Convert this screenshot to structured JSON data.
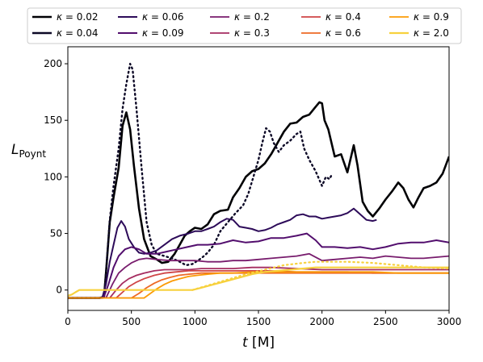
{
  "chart_data": {
    "type": "line",
    "title": "",
    "xlabel": "t [M]",
    "ylabel": "L_Poynt",
    "xlim": [
      0,
      3000
    ],
    "ylim": [
      -18,
      215
    ],
    "xticks": [
      0,
      500,
      1000,
      1500,
      2000,
      2500,
      3000
    ],
    "yticks": [
      0,
      50,
      100,
      150,
      200
    ],
    "grid": false,
    "legend_position": "top",
    "legend_columns": 5,
    "series": [
      {
        "name": "κ = 0.02",
        "color": "#000004",
        "width": 2.6,
        "dash": "solid",
        "x": [
          0,
          100,
          250,
          285,
          300,
          330,
          360,
          400,
          430,
          460,
          490,
          520,
          560,
          600,
          650,
          700,
          740,
          790,
          840,
          880,
          920,
          960,
          1000,
          1050,
          1100,
          1150,
          1200,
          1260,
          1300,
          1350,
          1400,
          1450,
          1500,
          1550,
          1600,
          1650,
          1700,
          1750,
          1800,
          1850,
          1900,
          1950,
          1980,
          2000,
          2020,
          2050,
          2100,
          2150,
          2200,
          2250,
          2280,
          2320,
          2360,
          2400,
          2450,
          2500,
          2550,
          2600,
          2640,
          2680,
          2720,
          2760,
          2800,
          2850,
          2900,
          2950,
          3000
        ],
        "y": [
          -7,
          -7,
          -7,
          -6,
          15,
          60,
          82,
          108,
          145,
          157,
          142,
          110,
          72,
          45,
          30,
          27,
          24,
          25,
          32,
          40,
          48,
          52,
          55,
          54,
          58,
          67,
          70,
          71,
          82,
          90,
          100,
          105,
          107,
          112,
          120,
          130,
          140,
          147,
          148,
          153,
          155,
          162,
          166,
          165,
          150,
          142,
          118,
          120,
          104,
          128,
          110,
          78,
          70,
          65,
          72,
          80,
          87,
          95,
          90,
          80,
          73,
          82,
          90,
          92,
          95,
          103,
          118
        ]
      },
      {
        "name": "κ = 0.04",
        "color": "#0c0826",
        "width": 2.4,
        "dash": "dotted",
        "x": [
          0,
          250,
          285,
          300,
          330,
          360,
          400,
          430,
          460,
          490,
          510,
          540,
          580,
          620,
          660,
          700,
          760,
          820,
          880,
          930,
          980,
          1050,
          1100,
          1150,
          1200,
          1260,
          1320,
          1380,
          1420,
          1460,
          1500,
          1530,
          1560,
          1590,
          1620,
          1660,
          1700,
          1750,
          1800,
          1830,
          1860,
          1900,
          1950,
          2000,
          2030,
          2060,
          2080
        ],
        "y": [
          -7,
          -7,
          -6,
          15,
          62,
          92,
          125,
          160,
          182,
          200,
          195,
          160,
          108,
          60,
          40,
          32,
          30,
          28,
          25,
          22,
          23,
          28,
          33,
          40,
          52,
          60,
          68,
          75,
          85,
          100,
          115,
          130,
          143,
          140,
          130,
          122,
          128,
          132,
          138,
          140,
          125,
          115,
          105,
          92,
          100,
          98,
          103
        ]
      },
      {
        "name": "κ = 0.06",
        "color": "#2d0b59",
        "width": 2.0,
        "dash": "solid",
        "x": [
          0,
          270,
          300,
          330,
          360,
          390,
          420,
          450,
          480,
          520,
          560,
          600,
          650,
          700,
          760,
          820,
          880,
          950,
          1000,
          1050,
          1100,
          1150,
          1200,
          1250,
          1300,
          1350,
          1400,
          1450,
          1500,
          1550,
          1600,
          1650,
          1700,
          1750,
          1800,
          1850,
          1900,
          1950,
          2000,
          2050,
          2100,
          2150,
          2200,
          2250,
          2300,
          2350,
          2400,
          2430
        ],
        "y": [
          -7,
          -7,
          5,
          25,
          40,
          55,
          61,
          56,
          45,
          38,
          33,
          32,
          33,
          35,
          40,
          45,
          48,
          50,
          52,
          52,
          54,
          56,
          60,
          63,
          62,
          56,
          55,
          54,
          52,
          53,
          55,
          58,
          60,
          62,
          66,
          67,
          65,
          65,
          63,
          64,
          65,
          66,
          68,
          72,
          67,
          62,
          61,
          62
        ]
      },
      {
        "name": "κ = 0.09",
        "color": "#520e6d",
        "width": 2.0,
        "dash": "solid",
        "x": [
          0,
          280,
          320,
          360,
          400,
          450,
          500,
          560,
          620,
          700,
          780,
          860,
          940,
          1020,
          1100,
          1200,
          1300,
          1400,
          1500,
          1600,
          1700,
          1800,
          1880,
          1950,
          2000,
          2100,
          2200,
          2300,
          2400,
          2500,
          2600,
          2700,
          2800,
          2900,
          3000
        ],
        "y": [
          -7,
          -7,
          5,
          20,
          30,
          36,
          38,
          36,
          32,
          32,
          34,
          36,
          38,
          40,
          40,
          41,
          44,
          42,
          43,
          46,
          46,
          48,
          50,
          44,
          38,
          38,
          37,
          38,
          36,
          38,
          41,
          42,
          42,
          44,
          42
        ]
      },
      {
        "name": "κ = 0.2",
        "color": "#781c6d",
        "width": 1.8,
        "dash": "solid",
        "x": [
          0,
          300,
          350,
          400,
          450,
          500,
          560,
          620,
          700,
          800,
          900,
          1000,
          1100,
          1200,
          1300,
          1400,
          1500,
          1600,
          1700,
          1800,
          1900,
          2000,
          2100,
          2200,
          2300,
          2400,
          2500,
          2600,
          2700,
          2800,
          2900,
          3000
        ],
        "y": [
          -7,
          -7,
          5,
          15,
          20,
          24,
          27,
          28,
          27,
          26,
          26,
          26,
          25,
          25,
          26,
          26,
          27,
          28,
          29,
          30,
          32,
          26,
          27,
          28,
          29,
          28,
          30,
          29,
          28,
          28,
          29,
          30
        ]
      },
      {
        "name": "κ = 0.3",
        "color": "#a52c60",
        "width": 1.8,
        "dash": "solid",
        "x": [
          0,
          330,
          380,
          430,
          480,
          540,
          600,
          680,
          760,
          850,
          950,
          1050,
          1150,
          1300,
          1450,
          1600,
          1800,
          2000,
          2200,
          2400,
          2600,
          2800,
          3000
        ],
        "y": [
          -7,
          -7,
          0,
          6,
          10,
          13,
          15,
          17,
          18,
          18,
          18,
          19,
          19,
          19,
          20,
          20,
          19,
          18,
          18,
          18,
          18,
          18,
          18
        ]
      },
      {
        "name": "κ = 0.4",
        "color": "#cf4446",
        "width": 1.8,
        "dash": "solid",
        "x": [
          0,
          380,
          430,
          480,
          540,
          600,
          680,
          760,
          850,
          950,
          1050,
          1150,
          1300,
          1450,
          1600,
          1800,
          2000,
          2200,
          2400,
          2600,
          2800,
          3000
        ],
        "y": [
          -7,
          -7,
          -2,
          3,
          7,
          10,
          13,
          15,
          16,
          17,
          17,
          17,
          17,
          17,
          17,
          16,
          16,
          16,
          15,
          15,
          15,
          15
        ]
      },
      {
        "name": "κ = 0.6",
        "color": "#ed6925",
        "width": 1.8,
        "dash": "solid",
        "x": [
          0,
          500,
          560,
          620,
          680,
          740,
          800,
          870,
          950,
          1050,
          1150,
          1300,
          1450,
          1600,
          1800,
          2000,
          2200,
          2400,
          2600,
          2800,
          3000
        ],
        "y": [
          -7,
          -7,
          -3,
          2,
          6,
          9,
          11,
          13,
          14,
          15,
          15,
          15,
          15,
          15,
          15,
          15,
          15,
          15,
          15,
          15,
          15
        ]
      },
      {
        "name": "κ = 0.9",
        "color": "#fb9b06",
        "width": 1.8,
        "dash": "solid",
        "x": [
          0,
          600,
          650,
          700,
          760,
          820,
          880,
          950,
          1020,
          1100,
          1200,
          1300,
          1450,
          1600,
          1800,
          2000,
          2200,
          2400,
          2600,
          2800,
          3000
        ],
        "y": [
          -7,
          -7,
          -3,
          1,
          5,
          8,
          10,
          12,
          13,
          14,
          15,
          15,
          16,
          16,
          16,
          16,
          16,
          16,
          15,
          15,
          15
        ]
      },
      {
        "name": "κ = 2.0",
        "color": "#f7d13d",
        "width": 2.2,
        "dash": "solid",
        "x": [
          0,
          30,
          60,
          90,
          150,
          300,
          500,
          700,
          980,
          1050,
          1150,
          1250,
          1350,
          1450,
          1550,
          1650,
          1750,
          1850,
          1950,
          2050,
          2200,
          2400,
          2600,
          2800,
          3000
        ],
        "y": [
          -5,
          -4,
          -2,
          0,
          0,
          0,
          0,
          0,
          0,
          2,
          5,
          8,
          11,
          14,
          16,
          17,
          18,
          19,
          20,
          20,
          20,
          20,
          20,
          20,
          20
        ]
      },
      {
        "name": "",
        "color": "#f7d13d",
        "width": 2.2,
        "dash": "dotted",
        "x": [
          980,
          1100,
          1250,
          1400,
          1550,
          1700,
          1850,
          1950,
          2050,
          2200,
          2400,
          2600,
          2800,
          3000
        ],
        "y": [
          0,
          4,
          9,
          14,
          18,
          22,
          24,
          25,
          25,
          25,
          24,
          22,
          20,
          19
        ]
      }
    ]
  }
}
